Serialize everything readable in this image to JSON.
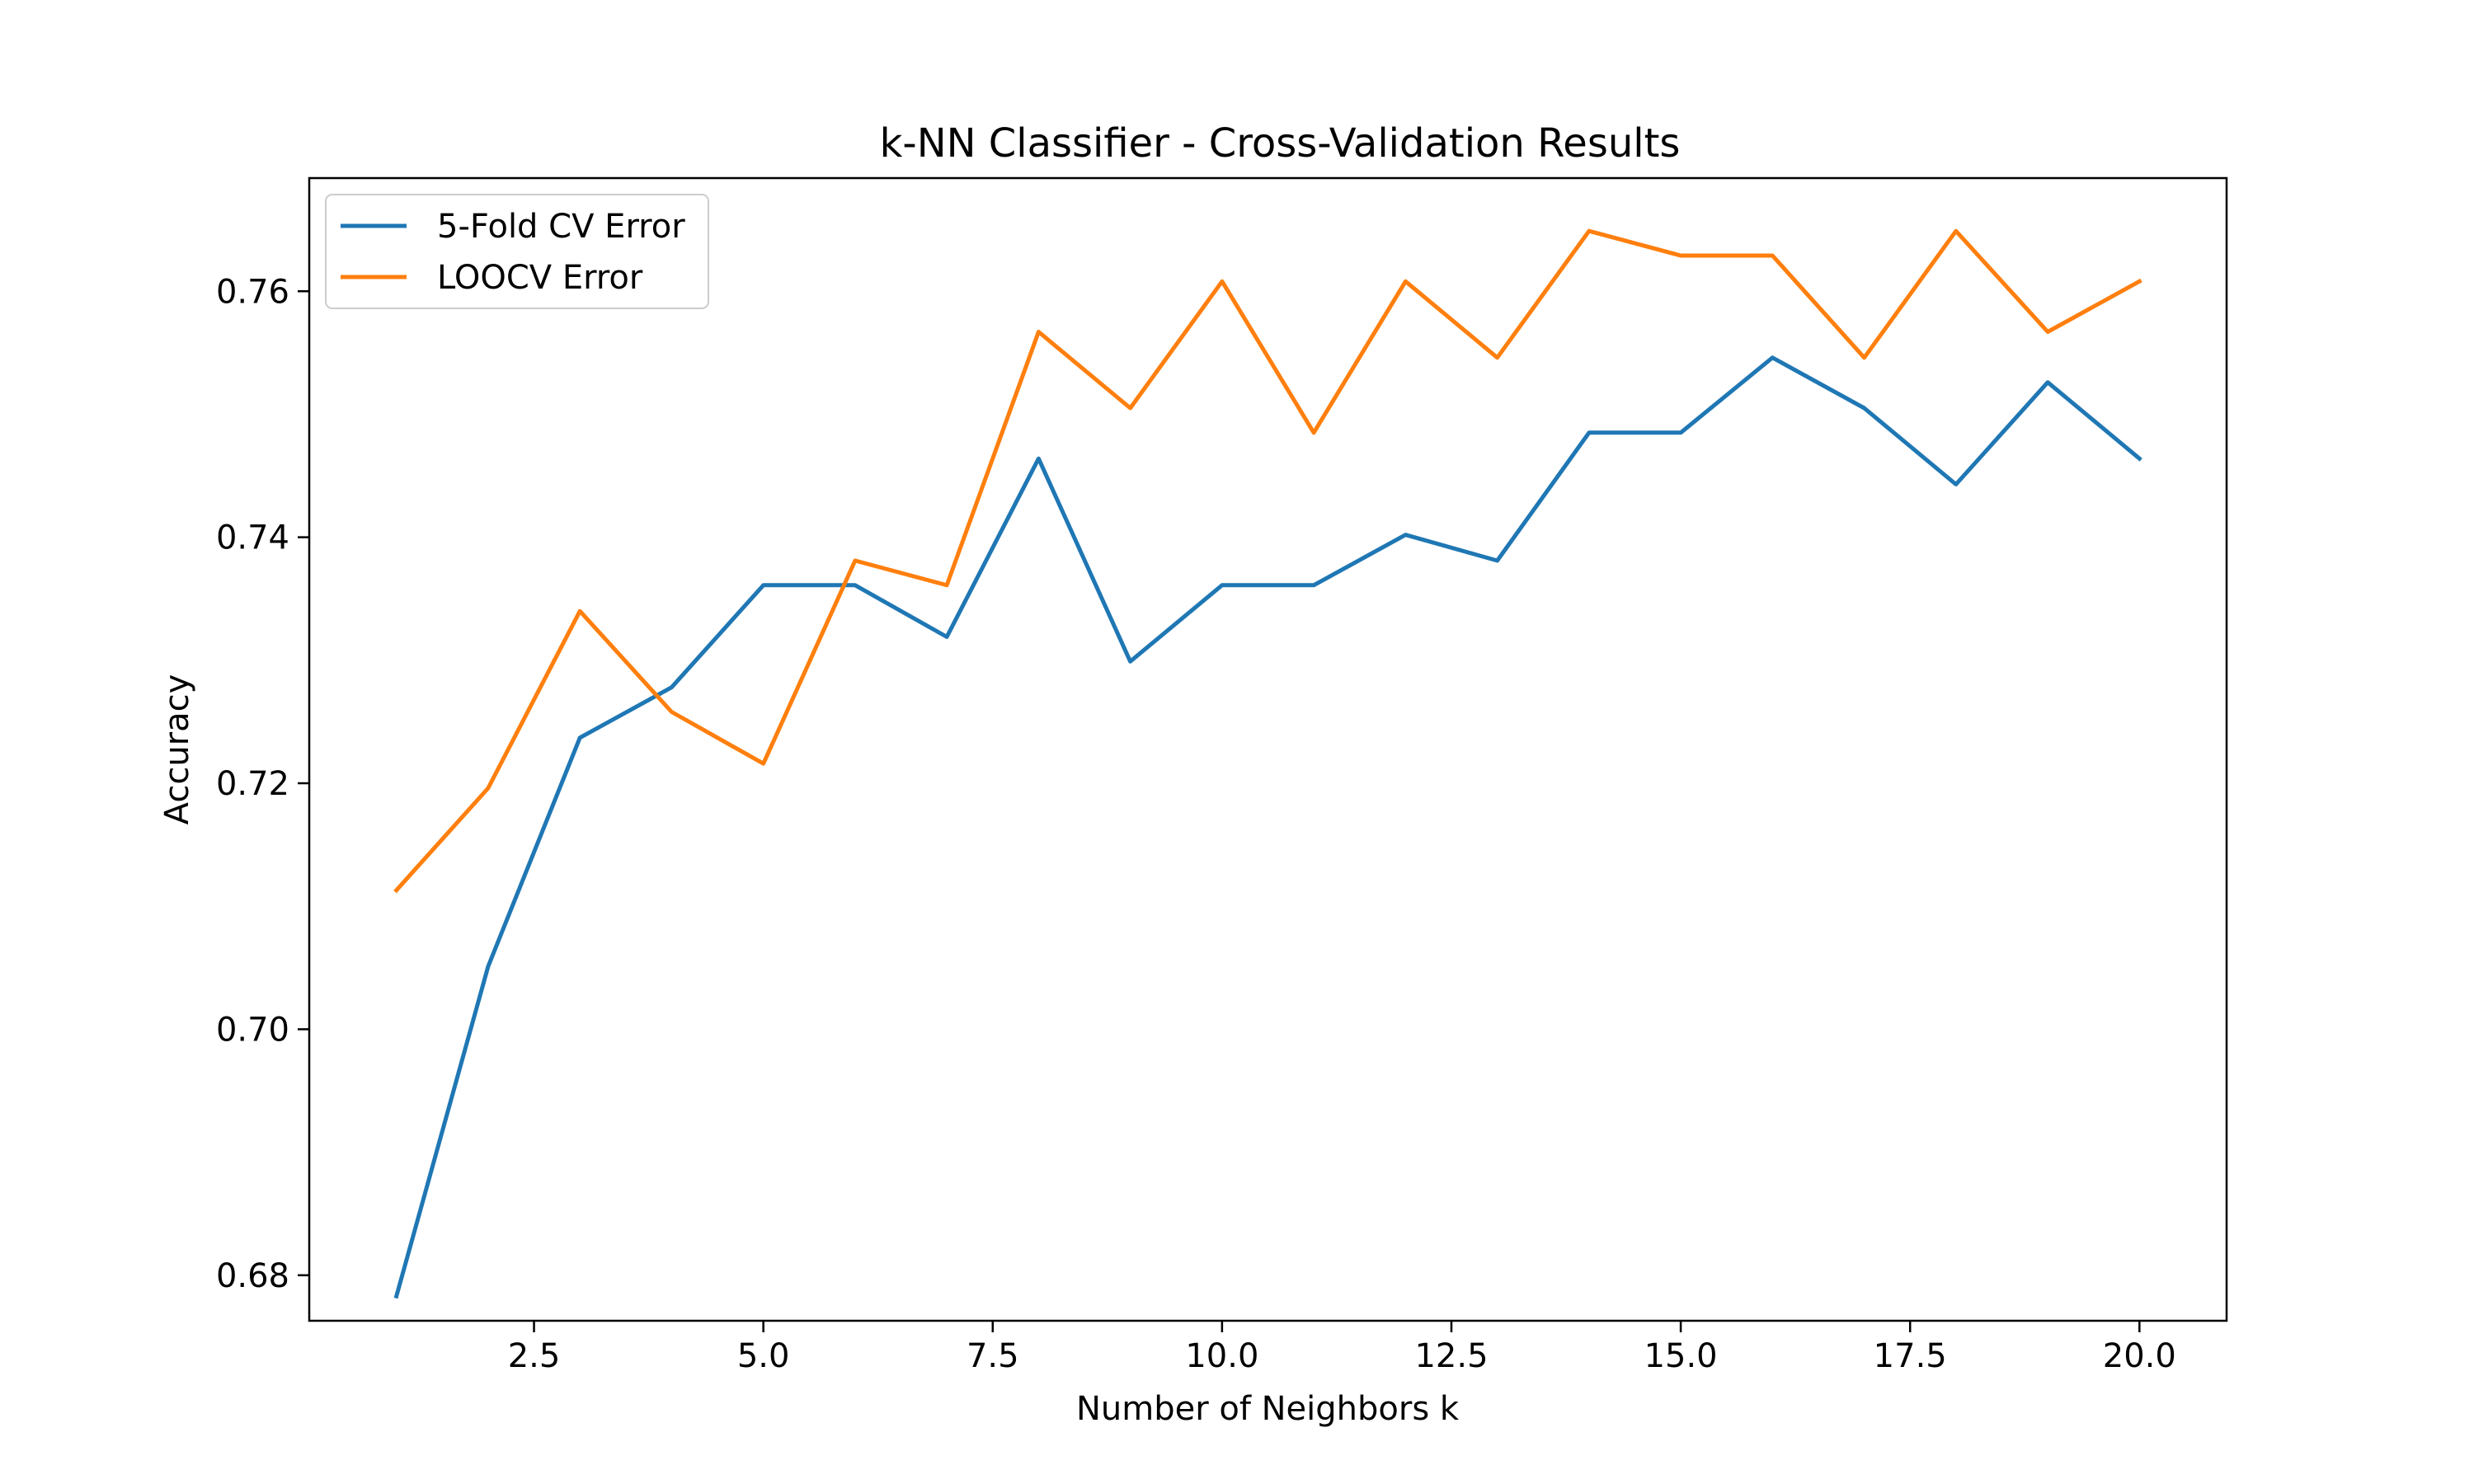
{
  "chart_data": {
    "type": "line",
    "title": "k-NN Classifier - Cross-Validation Results",
    "xlabel": "Number of Neighbors k",
    "ylabel": "Accuracy",
    "xlim": [
      0.05,
      20.95
    ],
    "ylim": [
      0.6763,
      0.7692
    ],
    "xticks": [
      2.5,
      5.0,
      7.5,
      10.0,
      12.5,
      15.0,
      17.5,
      20.0
    ],
    "xtick_labels": [
      "2.5",
      "5.0",
      "7.5",
      "10.0",
      "12.5",
      "15.0",
      "17.5",
      "20.0"
    ],
    "yticks": [
      0.68,
      0.7,
      0.72,
      0.74,
      0.76
    ],
    "ytick_labels": [
      "0.68",
      "0.70",
      "0.72",
      "0.74",
      "0.76"
    ],
    "grid": false,
    "legend_position": "upper-left",
    "x": [
      1,
      2,
      3,
      4,
      5,
      6,
      7,
      8,
      9,
      10,
      11,
      12,
      13,
      14,
      15,
      16,
      17,
      18,
      19,
      20
    ],
    "series": [
      {
        "name": "5-Fold CV Error",
        "color": "#1f77b4",
        "values": [
          0.6783,
          0.7051,
          0.7237,
          0.7278,
          0.7361,
          0.7361,
          0.7319,
          0.7464,
          0.7299,
          0.7361,
          0.7361,
          0.7402,
          0.7381,
          0.7485,
          0.7485,
          0.7546,
          0.7505,
          0.7443,
          0.7526,
          0.7464
        ]
      },
      {
        "name": "LOOCV Error",
        "color": "#ff7f0e",
        "values": [
          0.7113,
          0.7196,
          0.734,
          0.7258,
          0.7216,
          0.7381,
          0.7361,
          0.7567,
          0.7505,
          0.7608,
          0.7485,
          0.7608,
          0.7546,
          0.7649,
          0.7629,
          0.7629,
          0.7546,
          0.7649,
          0.7567,
          0.7608
        ]
      }
    ]
  }
}
